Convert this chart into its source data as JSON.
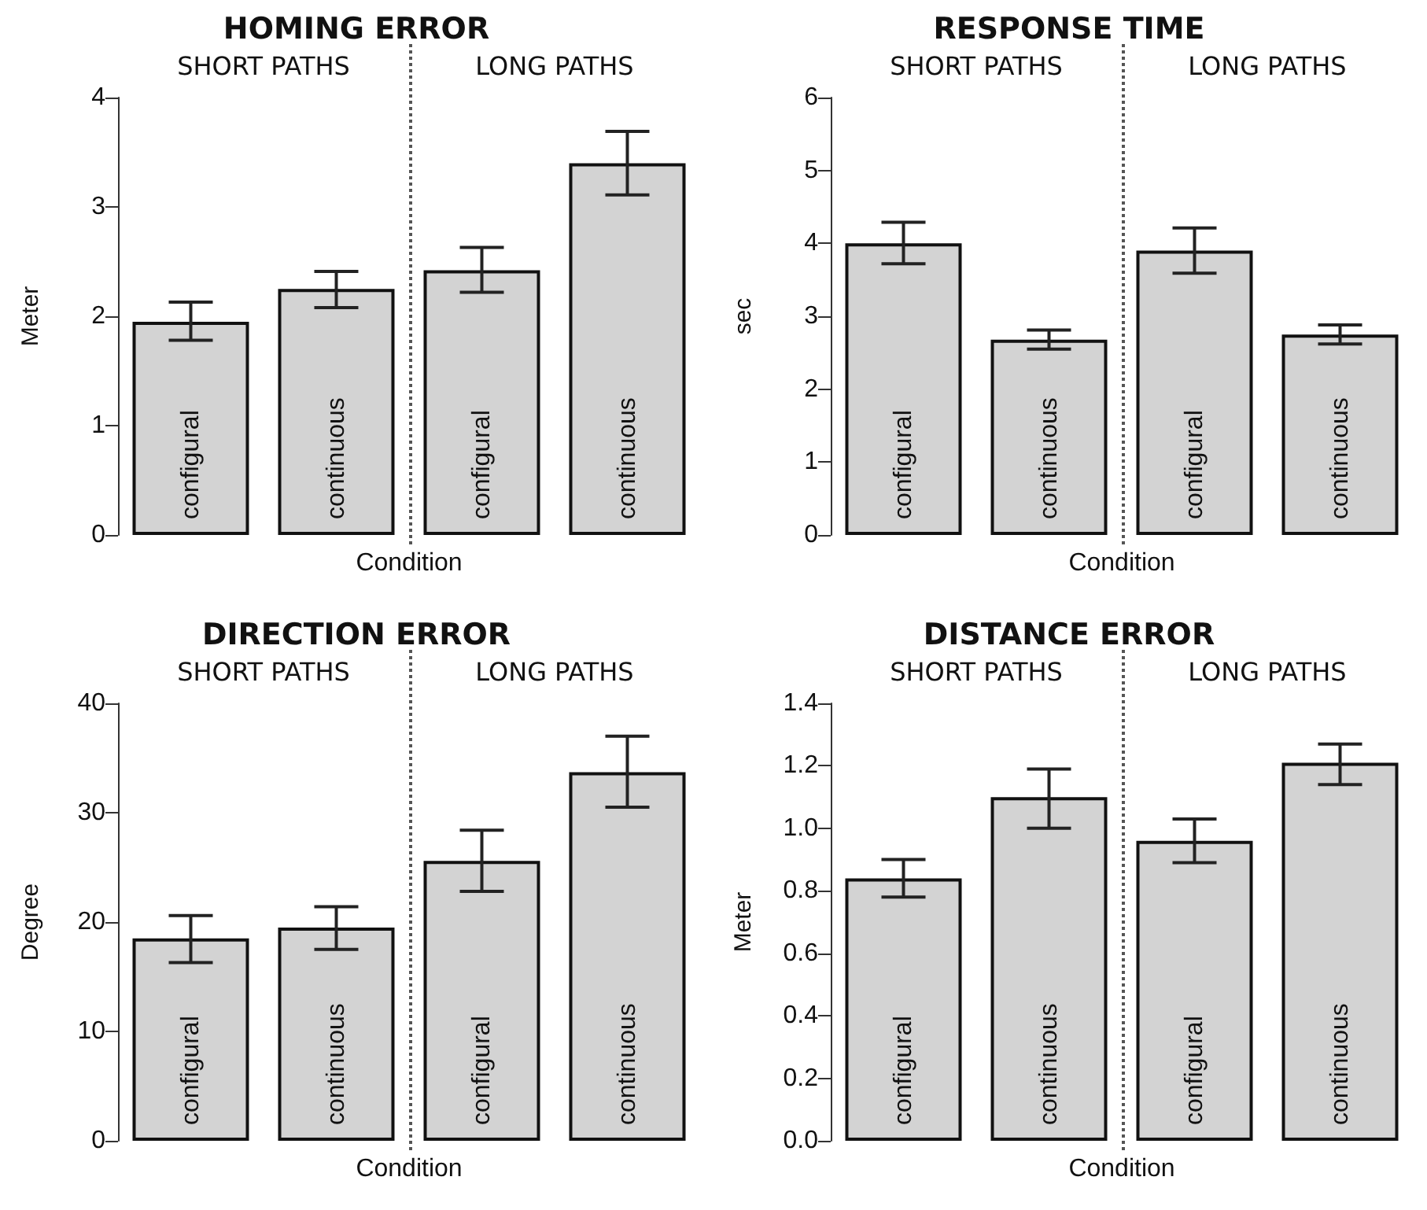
{
  "chart_data": [
    {
      "type": "bar",
      "title": "HOMING ERROR",
      "xlabel": "Condition",
      "ylabel": "Meter",
      "annotations": [
        "SHORT PATHS",
        "LONG PATHS"
      ],
      "categories": [
        "configural",
        "continuous",
        "configural",
        "continuous"
      ],
      "color": "#d3d3d3",
      "values": [
        1.95,
        2.25,
        2.42,
        3.4
      ],
      "errors": [
        [
          1.78,
          2.13
        ],
        [
          2.08,
          2.41
        ],
        [
          2.22,
          2.63
        ],
        [
          3.11,
          3.69
        ]
      ],
      "ylim": [
        0,
        4
      ],
      "yticks": [
        0,
        1,
        2,
        3,
        4
      ],
      "grid": false
    },
    {
      "type": "bar",
      "title": "RESPONSE TIME",
      "xlabel": "Condition",
      "ylabel": "sec",
      "annotations": [
        "SHORT PATHS",
        "LONG PATHS"
      ],
      "categories": [
        "configural",
        "continuous",
        "configural",
        "continuous"
      ],
      "color": "#d3d3d3",
      "values": [
        4.0,
        2.68,
        3.9,
        2.75
      ],
      "errors": [
        [
          3.72,
          4.29
        ],
        [
          2.55,
          2.81
        ],
        [
          3.59,
          4.21
        ],
        [
          2.62,
          2.88
        ]
      ],
      "ylim": [
        0,
        6
      ],
      "yticks": [
        0,
        1,
        2,
        3,
        4,
        5,
        6
      ],
      "grid": false
    },
    {
      "type": "bar",
      "title": "DIRECTION ERROR",
      "xlabel": "Condition",
      "ylabel": "Degree",
      "annotations": [
        "SHORT PATHS",
        "LONG PATHS"
      ],
      "categories": [
        "configural",
        "continuous",
        "configural",
        "continuous"
      ],
      "color": "#d3d3d3",
      "values": [
        18.5,
        19.5,
        25.6,
        33.7
      ],
      "errors": [
        [
          16.3,
          20.6
        ],
        [
          17.5,
          21.4
        ],
        [
          22.8,
          28.4
        ],
        [
          30.5,
          37.0
        ]
      ],
      "ylim": [
        0,
        40
      ],
      "yticks": [
        0,
        10,
        20,
        30,
        40
      ],
      "grid": false
    },
    {
      "type": "bar",
      "title": "DISTANCE ERROR",
      "xlabel": "Condition",
      "ylabel": "Meter",
      "annotations": [
        "SHORT PATHS",
        "LONG PATHS"
      ],
      "categories": [
        "configural",
        "continuous",
        "configural",
        "continuous"
      ],
      "color": "#d3d3d3",
      "values": [
        0.84,
        1.1,
        0.96,
        1.21
      ],
      "errors": [
        [
          0.78,
          0.9
        ],
        [
          1.0,
          1.19
        ],
        [
          0.89,
          1.03
        ],
        [
          1.14,
          1.27
        ]
      ],
      "ylim": [
        0,
        1.4
      ],
      "yticks": [
        {
          "value": 0,
          "label": "0.0"
        },
        {
          "value": 0.2,
          "label": "0.2"
        },
        {
          "value": 0.4,
          "label": "0.4"
        },
        {
          "value": 0.6,
          "label": "0.6"
        },
        {
          "value": 0.8,
          "label": "0.8"
        },
        {
          "value": 1,
          "label": "1.0"
        },
        {
          "value": 1.2,
          "label": "1.2"
        },
        {
          "value": 1.4,
          "label": "1.4"
        }
      ],
      "grid": false
    }
  ]
}
